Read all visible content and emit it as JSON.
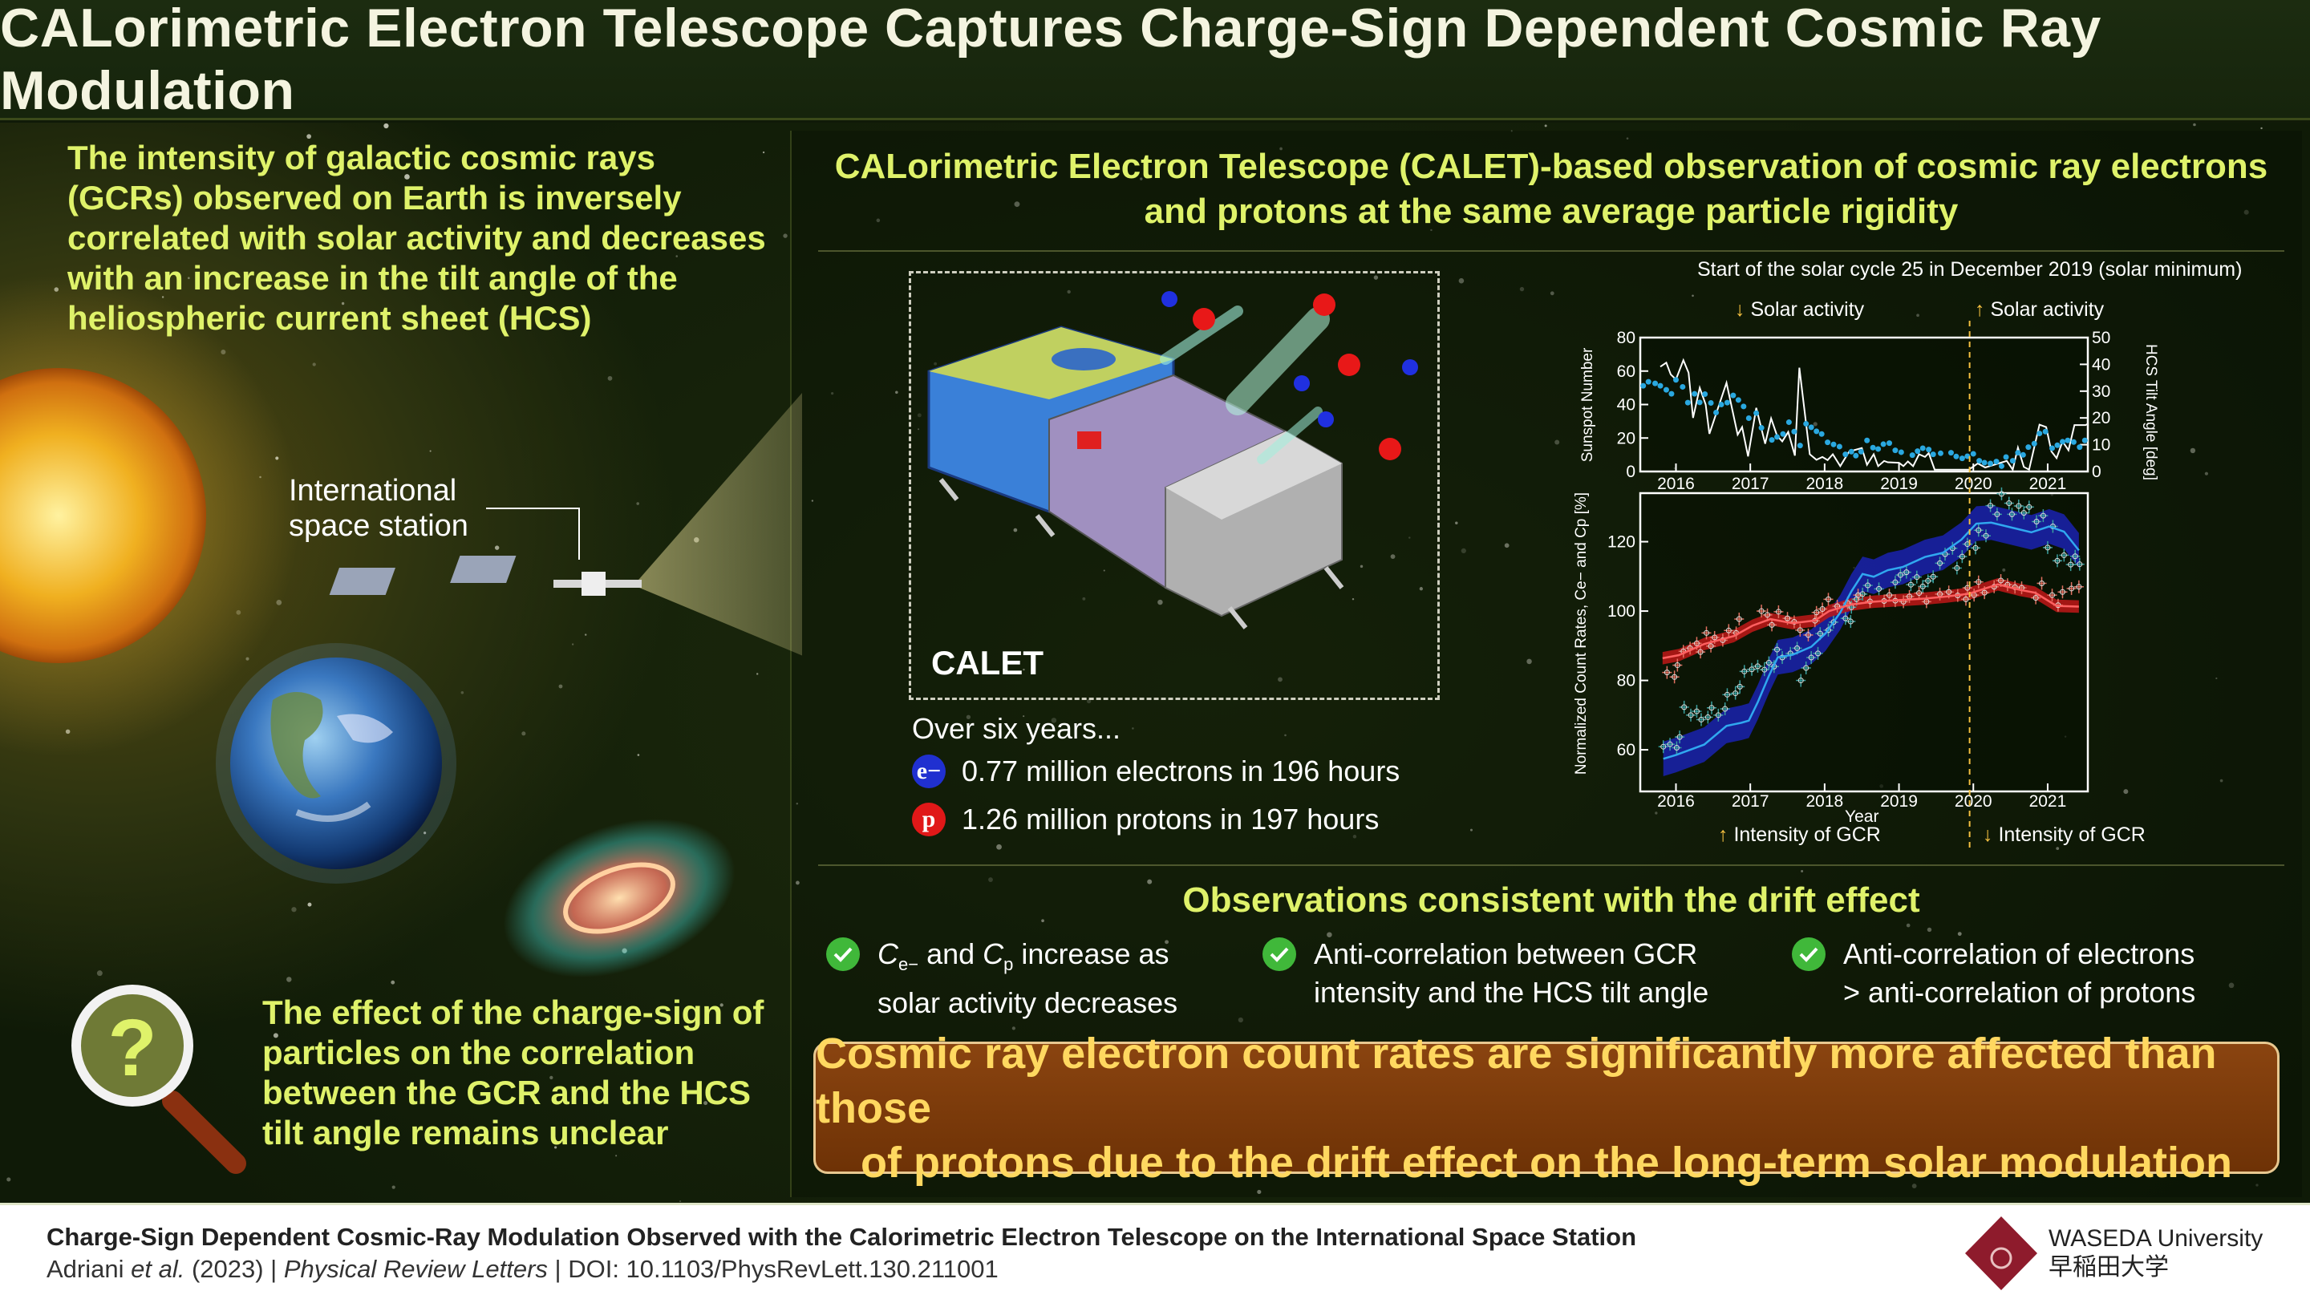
{
  "title": "CALorimetric Electron Telescope Captures Charge-Sign Dependent Cosmic Ray Modulation",
  "left": {
    "intro": "The intensity of galactic cosmic rays (GCRs) observed on Earth is inversely correlated with solar activity and decreases with an increase in the tilt angle of the heliospheric current sheet (HCS)",
    "iss_label_line1": "International",
    "iss_label_line2": "space station",
    "question": "The effect of the charge-sign of particles on the correlation between the GCR and the HCS tilt angle remains unclear",
    "question_mark": "?"
  },
  "right": {
    "heading_line1": "CALorimetric Electron Telescope (CALET)-based observation of cosmic ray electrons",
    "heading_line2": "and protons at the same average particle rigidity",
    "calet_label": "CALET",
    "over_six_years": "Over six years...",
    "electron_badge": "e−",
    "electron_stat": "0.77 million electrons in 196 hours",
    "proton_badge": "p",
    "proton_stat": "1.26 million protons in 197 hours",
    "solar_cycle_note": "Start of the solar cycle 25 in December 2019 (solar minimum)",
    "solar_activity_down": "Solar activity",
    "solar_activity_up": "Solar activity",
    "gcr_up": "Intensity of GCR",
    "gcr_down": "Intensity of GCR",
    "arrow_down": "↓",
    "arrow_up": "↑"
  },
  "observations": {
    "title": "Observations consistent with the drift effect",
    "items": [
      {
        "line1_a": "C",
        "sub1": "e−",
        "line1_b": " and ",
        "c2": "C",
        "sub2": "p",
        "line1_c": " increase as",
        "line2": "solar activity decreases"
      },
      {
        "line1": "Anti-correlation between GCR",
        "line2": "intensity and the HCS tilt angle"
      },
      {
        "line1": "Anti-correlation of electrons",
        "line2": "> anti-correlation of protons"
      }
    ]
  },
  "banner": {
    "line1": "Cosmic ray electron count rates are significantly more affected than those",
    "line2": "of protons due to the drift effect on the long-term solar modulation"
  },
  "footer": {
    "paper_title": "Charge-Sign Dependent Cosmic-Ray Modulation Observed with the Calorimetric Electron Telescope on the International Space Station",
    "authors": "Adriani",
    "et_al": " et al.",
    "year": " (2023) | ",
    "journal": "Physical Review Letters",
    "doi": " | DOI: 10.1103/PhysRevLett.130.211001",
    "logo_en": "WASEDA University",
    "logo_jp": "早稲田大学"
  },
  "colors": {
    "accent": "#dff26a",
    "electron": "#2030d0",
    "proton": "#e02020",
    "check": "#40b83a",
    "banner_bg": "#7a3a0a",
    "banner_text": "#ffd860"
  },
  "chart_data": [
    {
      "type": "line",
      "title": "",
      "xlabel": "",
      "ylabel": "Sunspot Number",
      "y2label": "HCS Tilt Angle [deg]",
      "xlim": [
        2015.52,
        2021.54
      ],
      "ylim": [
        0,
        80
      ],
      "y2lim": [
        0,
        50
      ],
      "xticks": [
        2016,
        2017,
        2018,
        2019,
        2020,
        2021
      ],
      "yticks": [
        0,
        20,
        40,
        60,
        80
      ],
      "y2ticks": [
        0,
        10,
        20,
        30,
        40,
        50
      ],
      "marker_line": 2019.95,
      "series": [
        {
          "name": "Sunspot Number",
          "axis": "left",
          "color": "#ffffff",
          "x": [
            2015.79,
            2015.87,
            2015.93,
            2016.0,
            2016.1,
            2016.17,
            2016.23,
            2016.32,
            2016.4,
            2016.45,
            2016.68,
            2016.83,
            2016.89,
            2016.97,
            2017.08,
            2017.2,
            2017.28,
            2017.36,
            2017.43,
            2017.51,
            2017.6,
            2017.66,
            2017.8,
            2017.89,
            2017.97,
            2018.04,
            2018.11,
            2018.21,
            2018.33,
            2018.5,
            2018.57,
            2018.66,
            2018.72,
            2018.8,
            2018.85,
            2019.0,
            2019.06,
            2019.12,
            2019.19,
            2019.27,
            2019.35,
            2019.4,
            2019.48,
            2019.94,
            2020.06,
            2020.16,
            2020.45,
            2020.53,
            2020.6,
            2020.68,
            2020.75,
            2020.89,
            2020.98,
            2021.05,
            2021.12,
            2021.2,
            2021.28,
            2021.36,
            2021.51,
            2021.54
          ],
          "y": [
            62.6,
            65,
            58,
            55,
            66.5,
            59,
            32,
            50,
            40,
            22.5,
            53,
            22,
            26.5,
            9,
            38,
            16.6,
            31.7,
            21.4,
            18,
            23.6,
            9.5,
            62,
            10.3,
            7,
            8.7,
            6.8,
            10.3,
            3.2,
            11.9,
            14,
            4,
            10.3,
            3.2,
            6.3,
            5.5,
            5.2,
            3.2,
            6,
            3.2,
            10.3,
            8.7,
            11,
            1.1,
            1.1,
            4.8,
            2.4,
            6.3,
            1.1,
            14.3,
            2.7,
            1.1,
            28,
            26.5,
            12,
            8,
            18,
            12.7,
            27.7,
            27.7,
            28.5
          ]
        },
        {
          "name": "HCS Tilt Angle",
          "axis": "right",
          "color": "#2aa8e0",
          "x": [
            2015.56,
            2015.63,
            2015.72,
            2015.79,
            2015.87,
            2015.94,
            2016.0,
            2016.09,
            2016.16,
            2016.25,
            2016.32,
            2016.39,
            2016.47,
            2016.54,
            2016.61,
            2016.69,
            2016.77,
            2016.84,
            2016.91,
            2016.98,
            2017.08,
            2017.15,
            2017.29,
            2017.36,
            2017.44,
            2017.52,
            2017.59,
            2017.67,
            2017.75,
            2017.82,
            2017.89,
            2017.96,
            2018.04,
            2018.12,
            2018.2,
            2018.28,
            2018.36,
            2018.42,
            2018.49,
            2018.57,
            2018.65,
            2018.72,
            2018.79,
            2018.87,
            2018.95,
            2019.03,
            2019.18,
            2019.25,
            2019.32,
            2019.4,
            2019.46,
            2019.56,
            2019.7,
            2019.77,
            2019.85,
            2019.92,
            2020.0,
            2020.08,
            2020.15,
            2020.23,
            2020.31,
            2020.38,
            2020.44,
            2020.53,
            2020.6,
            2020.67,
            2020.74,
            2020.82,
            2020.89,
            2020.97,
            2021.06,
            2021.13,
            2021.2,
            2021.27,
            2021.35,
            2021.43,
            2021.5
          ],
          "y": [
            32,
            33.5,
            32.9,
            32,
            30.5,
            29,
            34.2,
            31.6,
            25.7,
            29,
            25.8,
            28.9,
            25.6,
            22,
            25,
            25.7,
            28.4,
            26.7,
            24.3,
            19.9,
            21.8,
            16.3,
            11.8,
            12.9,
            14,
            18.4,
            14.9,
            9.7,
            17.8,
            16.5,
            15,
            14,
            10.9,
            10.1,
            9.3,
            6.4,
            7.4,
            5.9,
            7.4,
            11.6,
            8.9,
            8.4,
            10.2,
            10.6,
            7.9,
            7.2,
            6.1,
            7.6,
            8.7,
            8.2,
            6.4,
            6.8,
            7,
            5.6,
            4.9,
            5.7,
            6.6,
            4,
            3.3,
            3,
            3.7,
            2,
            5.4,
            4,
            7,
            6.2,
            9.1,
            10.4,
            14.2,
            14.9,
            8.7,
            9.8,
            11.1,
            11.6,
            11,
            9.1,
            11.6
          ]
        }
      ]
    },
    {
      "type": "scatter",
      "title": "",
      "xlabel": "Year",
      "ylabel": "Normalized Count Rates, Ce− and Cp [%]",
      "xlim": [
        2015.52,
        2021.54
      ],
      "ylim": [
        48,
        134
      ],
      "xticks": [
        2016,
        2017,
        2018,
        2019,
        2020,
        2021
      ],
      "yticks": [
        60,
        80,
        100,
        120
      ],
      "marker_line": 2019.95,
      "series": [
        {
          "name": "Electrons Ce−",
          "color": "#3aa0a0",
          "x": [
            2015.83,
            2015.92,
            2016.01,
            2016.05,
            2016.11,
            2016.2,
            2016.28,
            2016.34,
            2016.43,
            2016.48,
            2016.57,
            2016.66,
            2016.69,
            2016.8,
            2016.86,
            2016.92,
            2017.02,
            2017.1,
            2017.19,
            2017.25,
            2017.32,
            2017.36,
            2017.43,
            2017.54,
            2017.63,
            2017.68,
            2017.75,
            2017.82,
            2017.91,
            2017.94,
            2018.05,
            2018.12,
            2018.28,
            2018.35,
            2018.36,
            2018.43,
            2018.51,
            2018.58,
            2018.73,
            2018.95,
            2019.02,
            2019.1,
            2019.16,
            2019.24,
            2019.32,
            2019.39,
            2019.46,
            2019.55,
            2019.62,
            2019.72,
            2019.78,
            2019.85,
            2019.92,
            2020.03,
            2020.07,
            2020.17,
            2020.23,
            2020.32,
            2020.38,
            2020.48,
            2020.52,
            2020.61,
            2020.68,
            2020.75,
            2020.85,
            2020.94,
            2021.0,
            2021.07,
            2021.13,
            2021.22,
            2021.31,
            2021.37,
            2021.43
          ],
          "y": [
            60.9,
            61.6,
            60.6,
            63.7,
            72.3,
            70,
            71.1,
            68.7,
            69.4,
            72.1,
            70,
            71.8,
            75.9,
            76.3,
            78.2,
            82.6,
            83.2,
            84.1,
            83.1,
            85.1,
            84,
            88.9,
            86.6,
            87.8,
            89.3,
            80,
            83.6,
            86.6,
            87.8,
            93.5,
            94.5,
            96.8,
            97.9,
            97,
            101.1,
            103.4,
            104.9,
            107.4,
            106.4,
            108.3,
            110.4,
            111.2,
            107.6,
            109.8,
            107.1,
            108.7,
            109.9,
            113.8,
            116.4,
            118.1,
            112.4,
            115.7,
            119.3,
            118.2,
            123.3,
            121.7,
            130.4,
            127.9,
            133.8,
            131.1,
            127.9,
            130.3,
            128.3,
            130,
            125.8,
            127.5,
            118.3,
            124.4,
            114.5,
            116.1,
            113.4,
            115.8,
            113.5
          ]
        },
        {
          "name": "Protons Cp",
          "color": "#e07060",
          "x": [
            2015.88,
            2015.98,
            2016.02,
            2016.1,
            2016.19,
            2016.28,
            2016.33,
            2016.41,
            2016.47,
            2016.52,
            2016.63,
            2016.71,
            2016.81,
            2016.85,
            2017.15,
            2017.23,
            2017.29,
            2017.38,
            2017.5,
            2017.59,
            2017.67,
            2017.78,
            2017.87,
            2017.89,
            2017.97,
            2018.05,
            2018.17,
            2018.31,
            2018.45,
            2018.61,
            2018.8,
            2018.87,
            2018.95,
            2019.06,
            2019.14,
            2019.27,
            2019.37,
            2019.55,
            2019.67,
            2019.79,
            2019.9,
            2019.92,
            2020.01,
            2020.07,
            2020.15,
            2020.28,
            2020.37,
            2020.46,
            2020.56,
            2020.65,
            2020.84,
            2020.92,
            2021.06,
            2021.14,
            2021.2,
            2021.32,
            2021.42
          ],
          "y": [
            82.3,
            81,
            84.4,
            88.4,
            89.3,
            90.7,
            88.2,
            93.7,
            89.9,
            92.4,
            91.6,
            94.4,
            93.7,
            97.7,
            100,
            98.9,
            96,
            99.8,
            97.9,
            96.9,
            94.5,
            93.1,
            97.2,
            99.6,
            100.6,
            103.4,
            101.4,
            102.3,
            104.6,
            102.8,
            102.9,
            104.6,
            103,
            102.7,
            104.2,
            105.2,
            102.7,
            104.9,
            105.5,
            104.5,
            103.4,
            106.7,
            104.6,
            108.4,
            105.3,
            107,
            108.8,
            107.6,
            106.9,
            106.7,
            103.8,
            108,
            104.6,
            101.7,
            105.5,
            106.5,
            107
          ]
        },
        {
          "name": "Electron fit",
          "color": "#30a8f0",
          "band_color": "#1a22b0",
          "band_halfwidth": 5,
          "x": [
            2015.83,
            2016.0,
            2016.38,
            2016.68,
            2016.88,
            2016.98,
            2017.1,
            2017.25,
            2017.37,
            2017.57,
            2017.82,
            2018.01,
            2018.21,
            2018.36,
            2018.51,
            2018.66,
            2018.85,
            2019.05,
            2019.35,
            2019.59,
            2019.84,
            2020.04,
            2020.24,
            2020.53,
            2020.78,
            2021.02,
            2021.22,
            2021.42
          ],
          "y": [
            57.4,
            58.5,
            61.5,
            66.9,
            67.8,
            68.4,
            73.7,
            81.3,
            86.7,
            87.4,
            89.7,
            93.5,
            99.6,
            105.7,
            110.7,
            109.9,
            111.8,
            112.7,
            115.6,
            116.8,
            120.6,
            125.2,
            125.5,
            124,
            122.7,
            124.4,
            122.9,
            117.5
          ]
        },
        {
          "name": "Proton fit",
          "color": "#ff6060",
          "band_color": "#c01818",
          "band_halfwidth": 1.8,
          "x": [
            2015.82,
            2016.04,
            2016.38,
            2016.78,
            2017.03,
            2017.27,
            2017.57,
            2017.87,
            2018.06,
            2018.36,
            2018.66,
            2018.95,
            2019.35,
            2019.64,
            2019.94,
            2020.33,
            2020.63,
            2020.83,
            2021.12,
            2021.42
          ],
          "y": [
            86.4,
            87.3,
            90.5,
            92.8,
            95.8,
            97.7,
            96.5,
            97.3,
            100,
            101.9,
            102.7,
            103.1,
            103.6,
            104.2,
            105,
            107.7,
            106.1,
            105.3,
            101.5,
            101.3
          ]
        }
      ]
    }
  ]
}
